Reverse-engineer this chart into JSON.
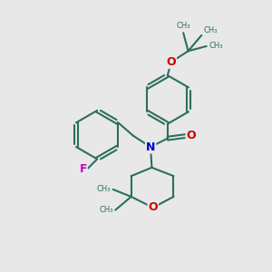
{
  "bg_color": "#e8e8e8",
  "bond_color": "#2d6e5e",
  "atom_colors": {
    "N": "#0000cc",
    "O": "#cc0000",
    "F": "#cc00cc"
  },
  "line_width": 1.5,
  "xlim": [
    -5.5,
    5.5
  ],
  "ylim": [
    -5.5,
    5.5
  ]
}
